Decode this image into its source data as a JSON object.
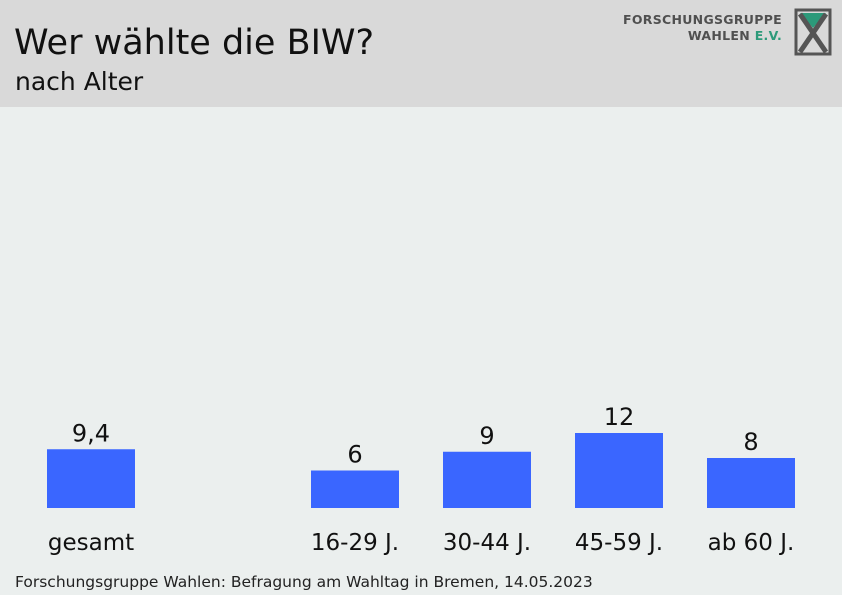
{
  "header": {
    "title": "Wer wählte die BIW?",
    "subtitle": "nach Alter"
  },
  "logo": {
    "line1": "FORSCHUNGSGRUPPE",
    "line2_main": "WAHLEN ",
    "line2_accent": "E.V."
  },
  "footer": {
    "source": "Forschungsgruppe Wahlen: Befragung am Wahltag in Bremen, 14.05.2023"
  },
  "colors": {
    "bar": "#3a66ff",
    "header_bg": "#d9d9d9",
    "plot_bg": "#ebefee"
  },
  "chart_data": {
    "type": "bar",
    "title": "Wer wählte die BIW?",
    "subtitle": "nach Alter",
    "categories": [
      "gesamt",
      "16-29 J.",
      "30-44 J.",
      "45-59 J.",
      "ab 60 J."
    ],
    "values": [
      9.4,
      6,
      9,
      12,
      8
    ],
    "data_labels": [
      "9,4",
      "6",
      "9",
      "12",
      "8"
    ],
    "xlabel": "",
    "ylabel": "",
    "ylim": [
      0,
      12
    ],
    "grid": false,
    "legend": "none"
  }
}
